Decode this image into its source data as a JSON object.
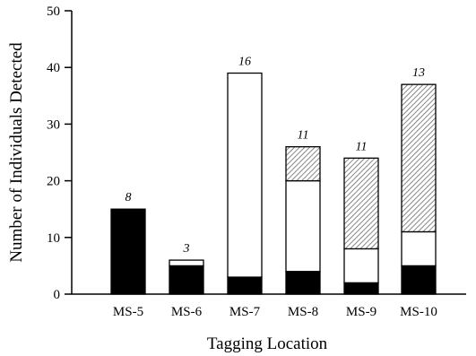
{
  "chart_data": {
    "type": "bar",
    "stacked": true,
    "title": "",
    "xlabel": "Tagging Location",
    "ylabel": "Number of Individuals Detected",
    "ylim": [
      0,
      50
    ],
    "yticks": [
      "0",
      "10",
      "20",
      "30",
      "40",
      "50"
    ],
    "grid": false,
    "categories": [
      "MS-5",
      "MS-6",
      "MS-7",
      "MS-8",
      "MS-9",
      "MS-10"
    ],
    "series": [
      {
        "fill": "#000000",
        "values": [
          15,
          5,
          3,
          4,
          2,
          5
        ]
      },
      {
        "fill": "#ffffff",
        "values": [
          0,
          1,
          36,
          16,
          6,
          6
        ]
      },
      {
        "fill": "hatched",
        "values": [
          0,
          0,
          0,
          6,
          16,
          26
        ]
      }
    ],
    "bar_labels": [
      "8",
      "3",
      "16",
      "11",
      "11",
      "13"
    ]
  }
}
